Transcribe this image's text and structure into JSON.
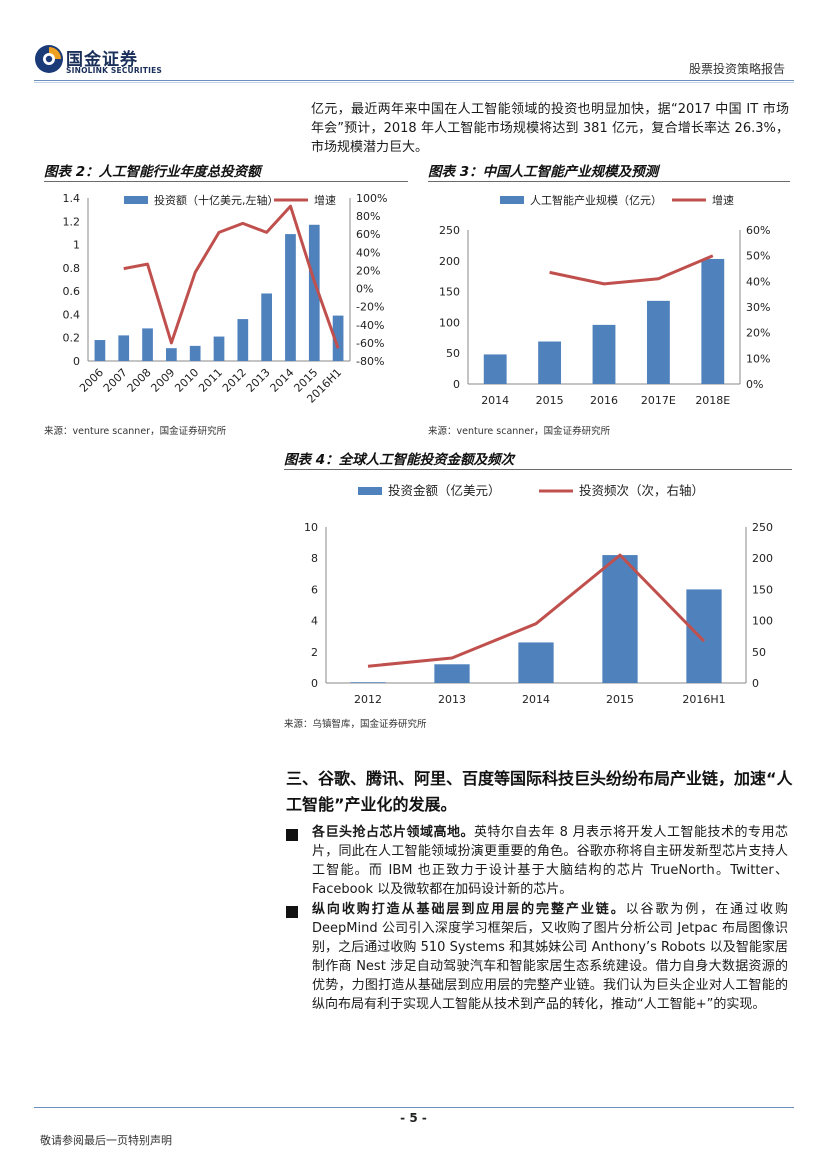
{
  "header": {
    "logo_cn": "国金证券",
    "logo_en": "SINOLINK SECURITIES",
    "report_type": "股票投资策略报告"
  },
  "intro": {
    "text": "亿元，最近两年来中国在人工智能领域的投资也明显加快，据“2017 中国 IT 市场年会”预计，2018 年人工智能市场规模将达到 381 亿元，复合增长率达 26.3%，市场规模潜力巨大。"
  },
  "chart2": {
    "title": "图表 2：人工智能行业年度总投资额",
    "source": "来源：venture scanner，国金证券研究所",
    "chart_data": {
      "type": "bar",
      "categories": [
        "2006",
        "2007",
        "2008",
        "2009",
        "2010",
        "2011",
        "2012",
        "2013",
        "2014",
        "2015",
        "2016H1"
      ],
      "series": [
        {
          "name": "投资额（十亿美元,左轴）",
          "type": "bar",
          "axis": "left",
          "values": [
            0.18,
            0.22,
            0.28,
            0.11,
            0.13,
            0.21,
            0.36,
            0.58,
            1.09,
            1.17,
            0.39
          ]
        },
        {
          "name": "增速",
          "type": "line",
          "axis": "right",
          "values": [
            null,
            22,
            27,
            -60,
            18,
            62,
            72,
            62,
            91,
            8,
            -66
          ]
        }
      ],
      "y_left": {
        "min": 0,
        "max": 1.4,
        "ticks": [
          "0",
          "0.2",
          "0.4",
          "0.6",
          "0.8",
          "1",
          "1.2",
          "1.4"
        ]
      },
      "y_right": {
        "min": -80,
        "max": 100,
        "ticks": [
          "-80%",
          "-60%",
          "-40%",
          "-20%",
          "0%",
          "20%",
          "40%",
          "60%",
          "80%",
          "100%"
        ]
      },
      "colors": {
        "bar": "#4f81bd",
        "line": "#c0504d"
      }
    }
  },
  "chart3": {
    "title": "图表 3：中国人工智能产业规模及预测",
    "source": "来源：venture scanner，国金证券研究所",
    "chart_data": {
      "type": "bar",
      "categories": [
        "2014",
        "2015",
        "2016",
        "2017E",
        "2018E"
      ],
      "series": [
        {
          "name": "人工智能产业规模（亿元）",
          "type": "bar",
          "axis": "left",
          "values": [
            48,
            69,
            96,
            135,
            203
          ]
        },
        {
          "name": "增速",
          "type": "line",
          "axis": "right",
          "values": [
            null,
            43.5,
            39.0,
            41.0,
            50.0
          ]
        }
      ],
      "y_left": {
        "min": 0,
        "max": 250,
        "ticks": [
          "0",
          "50",
          "100",
          "150",
          "200",
          "250"
        ]
      },
      "y_right": {
        "min": 0,
        "max": 60,
        "ticks": [
          "0%",
          "10%",
          "20%",
          "30%",
          "40%",
          "50%",
          "60%"
        ]
      },
      "colors": {
        "bar": "#4f81bd",
        "line": "#c0504d"
      }
    }
  },
  "chart4": {
    "title": "图表 4：全球人工智能投资金额及频次",
    "source": "来源：乌镇智库，国金证券研究所",
    "chart_data": {
      "type": "bar",
      "categories": [
        "2012",
        "2013",
        "2014",
        "2015",
        "2016H1"
      ],
      "series": [
        {
          "name": "投资金额（亿美元）",
          "type": "bar",
          "axis": "left",
          "values": [
            0.05,
            1.2,
            2.6,
            8.2,
            6.0
          ]
        },
        {
          "name": "投资频次（次，右轴）",
          "type": "line",
          "axis": "right",
          "values": [
            27,
            40,
            95,
            205,
            67
          ]
        }
      ],
      "y_left": {
        "min": 0,
        "max": 10,
        "ticks": [
          "0",
          "2",
          "4",
          "6",
          "8",
          "10"
        ]
      },
      "y_right": {
        "min": 0,
        "max": 250,
        "ticks": [
          "0",
          "50",
          "100",
          "150",
          "200",
          "250"
        ]
      },
      "colors": {
        "bar": "#4f81bd",
        "line": "#c0504d"
      }
    }
  },
  "section": {
    "title": "三、谷歌、腾讯、阿里、百度等国际科技巨头纷纷布局产业链，加速“人工智能”产业化的发展。",
    "bullets": [
      {
        "bold": "各巨头抢占芯片领域高地。",
        "text": "英特尔自去年 8 月表示将开发人工智能技术的专用芯片，同此在人工智能领域扮演更重要的角色。谷歌亦称将自主研发新型芯片支持人工智能。而 IBM 也正致力于设计基于大脑结构的芯片 TrueNorth。Twitter、Facebook 以及微软都在加码设计新的芯片。"
      },
      {
        "bold": "纵向收购打造从基础层到应用层的完整产业链。",
        "text": "以谷歌为例，在通过收购 DeepMind 公司引入深度学习框架后，又收购了图片分析公司 Jetpac 布局图像识别，之后通过收购 510 Systems 和其姊妹公司 Anthony’s Robots 以及智能家居制作商 Nest 涉足自动驾驶汽车和智能家居生态系统建设。借力自身大数据资源的优势，力图打造从基础层到应用层的完整产业链。我们认为巨头企业对人工智能的纵向布局有利于实现人工智能从技术到产品的转化，推动“人工智能+”的实现。"
      }
    ]
  },
  "footer": {
    "page": "- 5 -",
    "note": "敬请参阅最后一页特别声明"
  }
}
